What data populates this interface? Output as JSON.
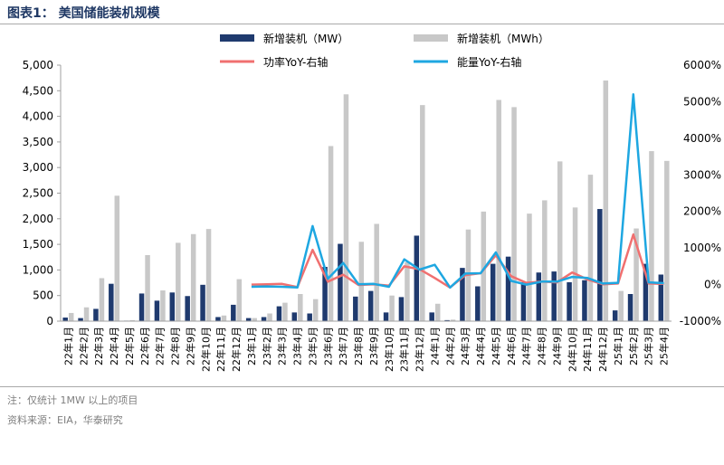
{
  "figure": {
    "title": "图表1：  美国储能装机规模",
    "note": "注：仅统计 1MW 以上的项目",
    "source": "资料来源：EIA，华泰研究"
  },
  "colors": {
    "mw_bar": "#1f3a6e",
    "mwh_bar": "#c8c8c8",
    "power_yoy": "#f07070",
    "energy_yoy": "#1ea7e1",
    "title": "#1f3864"
  },
  "chart_data": {
    "type": "bar",
    "categories": [
      "22年1月",
      "22年2月",
      "22年3月",
      "22年4月",
      "22年5月",
      "22年6月",
      "22年7月",
      "22年8月",
      "22年9月",
      "22年10月",
      "22年11月",
      "22年12月",
      "23年1月",
      "23年2月",
      "23年3月",
      "23年4月",
      "23年5月",
      "23年6月",
      "23年7月",
      "23年8月",
      "23年9月",
      "23年10月",
      "23年11月",
      "23年12月",
      "24年1月",
      "24年2月",
      "24年3月",
      "24年4月",
      "24年5月",
      "24年6月",
      "24年7月",
      "24年8月",
      "24年9月",
      "24年10月",
      "24年11月",
      "24年12月",
      "25年1月",
      "25年2月",
      "25年3月",
      "25年4月"
    ],
    "left_axis": {
      "min": 0,
      "max": 5000,
      "ticks": [
        "0",
        "500",
        "1,000",
        "1,500",
        "2,000",
        "2,500",
        "3,000",
        "3,500",
        "4,000",
        "4,500",
        "5,000"
      ]
    },
    "right_axis": {
      "min": -1000,
      "max": 6000,
      "ticks": [
        "-1000%",
        "0%",
        "1000%",
        "2000%",
        "3000%",
        "4000%",
        "5000%",
        "6000%"
      ]
    },
    "series": [
      {
        "name": "新增装机（MW）",
        "kind": "bar",
        "axis": "left",
        "values": [
          70,
          60,
          240,
          730,
          10,
          540,
          400,
          560,
          490,
          710,
          80,
          320,
          60,
          80,
          290,
          170,
          150,
          1060,
          1510,
          480,
          590,
          170,
          470,
          1670,
          170,
          20,
          1040,
          680,
          1120,
          1260,
          760,
          950,
          970,
          760,
          800,
          2190,
          210,
          530,
          1120,
          910
        ]
      },
      {
        "name": "新增装机（MWh）",
        "kind": "bar",
        "axis": "left",
        "values": [
          160,
          270,
          840,
          2450,
          20,
          1290,
          600,
          1530,
          1700,
          1800,
          110,
          820,
          60,
          150,
          360,
          530,
          430,
          3420,
          4430,
          1550,
          1900,
          500,
          1150,
          4220,
          340,
          30,
          1790,
          2140,
          4320,
          4180,
          2100,
          2360,
          3120,
          2220,
          2860,
          4700,
          590,
          1810,
          3320,
          3130
        ]
      },
      {
        "name": "功率YoY-右轴",
        "kind": "line",
        "axis": "right",
        "values": [
          null,
          null,
          null,
          null,
          null,
          null,
          null,
          null,
          null,
          null,
          null,
          null,
          0,
          10,
          20,
          -70,
          950,
          80,
          270,
          -10,
          10,
          -30,
          500,
          420,
          180,
          -80,
          260,
          310,
          800,
          230,
          50,
          80,
          60,
          330,
          140,
          10,
          30,
          1370,
          30,
          20
        ]
      },
      {
        "name": "能量YoY-右轴",
        "kind": "line",
        "axis": "right",
        "values": [
          null,
          null,
          null,
          null,
          null,
          null,
          null,
          null,
          null,
          null,
          null,
          null,
          -60,
          -50,
          -60,
          -80,
          1600,
          160,
          590,
          10,
          20,
          -60,
          690,
          410,
          540,
          -80,
          300,
          310,
          880,
          100,
          0,
          80,
          80,
          210,
          180,
          30,
          50,
          5200,
          60,
          40
        ]
      }
    ]
  }
}
